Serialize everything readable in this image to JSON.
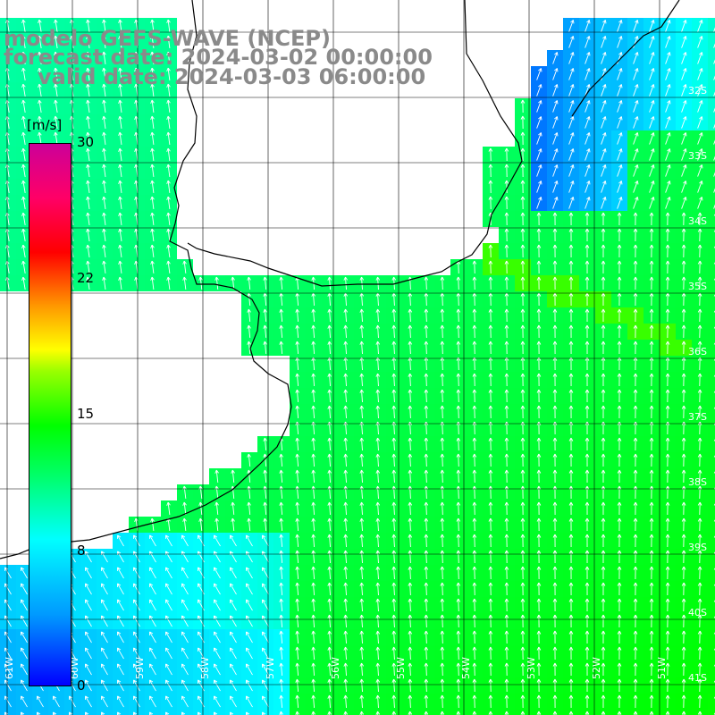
{
  "title": {
    "line1": "modelo GEFS-WAVE (NCEP)",
    "line2": "forecast date: 2024-03-02 00:00:00",
    "line3": "valid date: 2024-03-03 06:00:00"
  },
  "colorbar": {
    "unit": "[m/s]",
    "ticks": [
      "30",
      "22",
      "15",
      "8",
      "0"
    ],
    "tick_values": [
      30,
      22,
      15,
      8,
      0
    ],
    "range": [
      0,
      30
    ]
  },
  "lat_labels": [
    "32S",
    "33S",
    "34S",
    "35S",
    "36S",
    "37S",
    "38S",
    "39S",
    "40S",
    "41S"
  ],
  "lon_labels": [
    "61W",
    "60W",
    "59W",
    "58W",
    "57W",
    "56W",
    "55W",
    "54W",
    "53W",
    "52W",
    "51W"
  ],
  "colors": {
    "land": "#ffffff",
    "grid": "#000000",
    "coast": "#000000",
    "arrows": "#ffffff",
    "title_text": "#8a8a8a"
  }
}
